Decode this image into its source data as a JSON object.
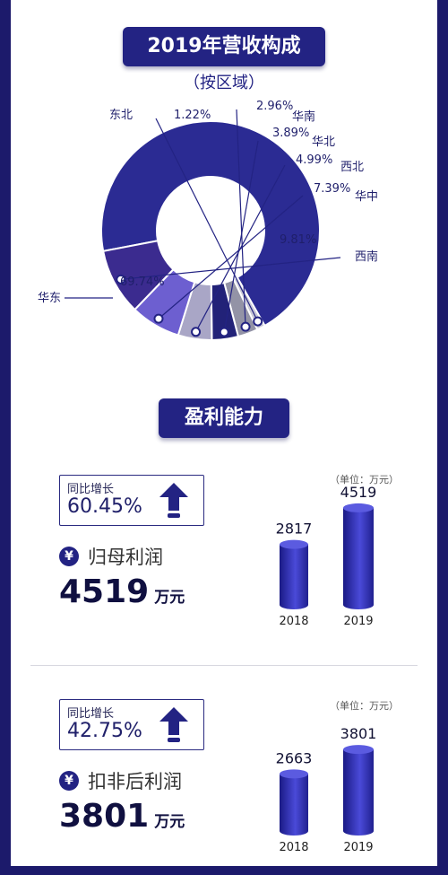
{
  "header": {
    "title": "2019年营收构成",
    "subtitle": "（按区域）"
  },
  "chart_data": [
    {
      "type": "pie",
      "title": "2019年营收构成",
      "subtitle": "（按区域）",
      "categories": [
        "华东",
        "东北",
        "华南",
        "华北",
        "西北",
        "华中",
        "西南"
      ],
      "value_labels": [
        "69.74%",
        "1.22%",
        "2.96%",
        "3.89%",
        "4.99%",
        "7.39%",
        "9.81%"
      ],
      "values": [
        69.74,
        1.22,
        2.96,
        3.89,
        4.99,
        7.39,
        9.81
      ],
      "colors": [
        "#2b2b93",
        "#c9c9d6",
        "#9393a6",
        "#222278",
        "#a9a6c6",
        "#6d5fd0",
        "#3b2b8f"
      ]
    },
    {
      "type": "bar",
      "title": "归母利润",
      "unit_note": "（单位：万元）",
      "categories": [
        "2018",
        "2019"
      ],
      "values": [
        2817,
        4519
      ],
      "value_labels": [
        "2817",
        "4519"
      ]
    },
    {
      "type": "bar",
      "title": "扣非后利润",
      "unit_note": "（单位：万元）",
      "categories": [
        "2018",
        "2019"
      ],
      "values": [
        2663,
        3801
      ],
      "value_labels": [
        "2663",
        "3801"
      ]
    }
  ],
  "profit": {
    "title": "盈利能力",
    "items": [
      {
        "growth_label": "同比增长",
        "growth_value": "60.45%",
        "yen": "¥",
        "label": "归母利润",
        "value": "4519",
        "unit": "万元"
      },
      {
        "growth_label": "同比增长",
        "growth_value": "42.75%",
        "yen": "¥",
        "label": "扣非后利润",
        "value": "3801",
        "unit": "万元"
      }
    ]
  }
}
